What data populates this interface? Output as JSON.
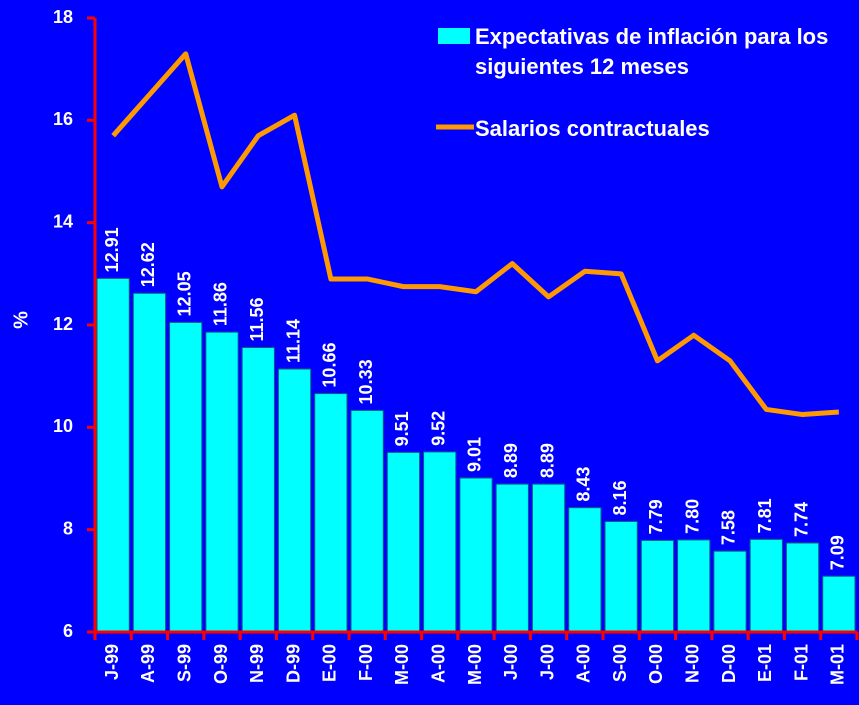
{
  "chart_data": {
    "type": "bar",
    "categories": [
      "J-99",
      "A-99",
      "S-99",
      "O-99",
      "N-99",
      "D-99",
      "E-00",
      "F-00",
      "M-00",
      "A-00",
      "M-00",
      "J-00",
      "J-00",
      "A-00",
      "S-00",
      "O-00",
      "N-00",
      "D-00",
      "E-01",
      "F-01",
      "M-01"
    ],
    "series": [
      {
        "name": "Expectativas de inflación para los siguientes 12 meses",
        "type": "bar",
        "color": "#00ffff",
        "values": [
          12.91,
          12.62,
          12.05,
          11.86,
          11.56,
          11.14,
          10.66,
          10.33,
          9.51,
          9.52,
          9.01,
          8.89,
          8.89,
          8.43,
          8.16,
          7.79,
          7.8,
          7.58,
          7.81,
          7.74,
          7.09
        ],
        "value_labels": [
          "12.91",
          "12.62",
          "12.05",
          "11.86",
          "11.56",
          "11.14",
          "10.66",
          "10.33",
          "9.51",
          "9.52",
          "9.01",
          "8.89",
          "8.89",
          "8.43",
          "8.16",
          "7.79",
          "7.80",
          "7.58",
          "7.81",
          "7.74",
          "7.09"
        ]
      },
      {
        "name": "Salarios contractuales",
        "type": "line",
        "color": "#ff9900",
        "values": [
          15.7,
          16.5,
          17.3,
          14.7,
          15.7,
          16.1,
          12.9,
          12.9,
          12.75,
          12.75,
          12.65,
          13.2,
          12.55,
          13.05,
          13.0,
          11.3,
          11.8,
          11.3,
          10.35,
          10.25,
          10.3
        ]
      }
    ],
    "ylabel": "%",
    "ylim": [
      6,
      18
    ],
    "yticks": [
      6,
      8,
      10,
      12,
      14,
      16,
      18
    ],
    "legend": "top-right"
  }
}
